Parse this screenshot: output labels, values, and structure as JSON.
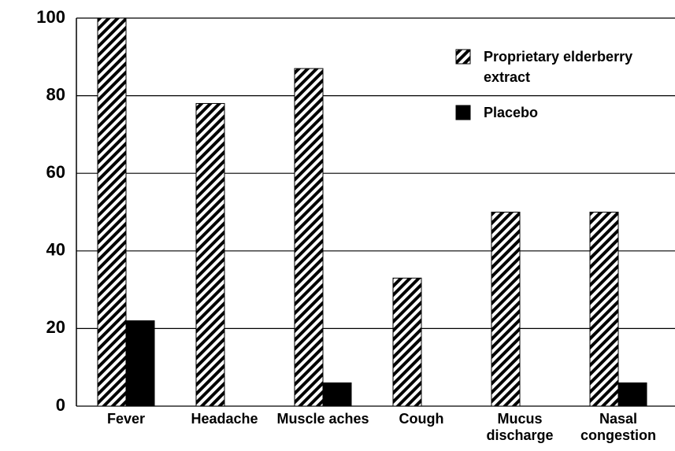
{
  "chart_data": {
    "type": "bar",
    "categories": [
      "Fever",
      "Headache",
      "Muscle aches",
      "Cough",
      "Mucus discharge",
      "Nasal congestion"
    ],
    "series": [
      {
        "name": "Proprietary elderberry extract",
        "color": "#000000",
        "pattern": "hatch",
        "values": [
          100,
          78,
          87,
          33,
          50,
          50
        ]
      },
      {
        "name": "Placebo",
        "color": "#000000",
        "values": [
          22,
          0,
          6,
          0,
          0,
          6
        ]
      }
    ],
    "ylim": [
      0,
      100
    ],
    "yticks": [
      0,
      20,
      40,
      60,
      80,
      100
    ],
    "grid": true,
    "legend": "upper right"
  }
}
